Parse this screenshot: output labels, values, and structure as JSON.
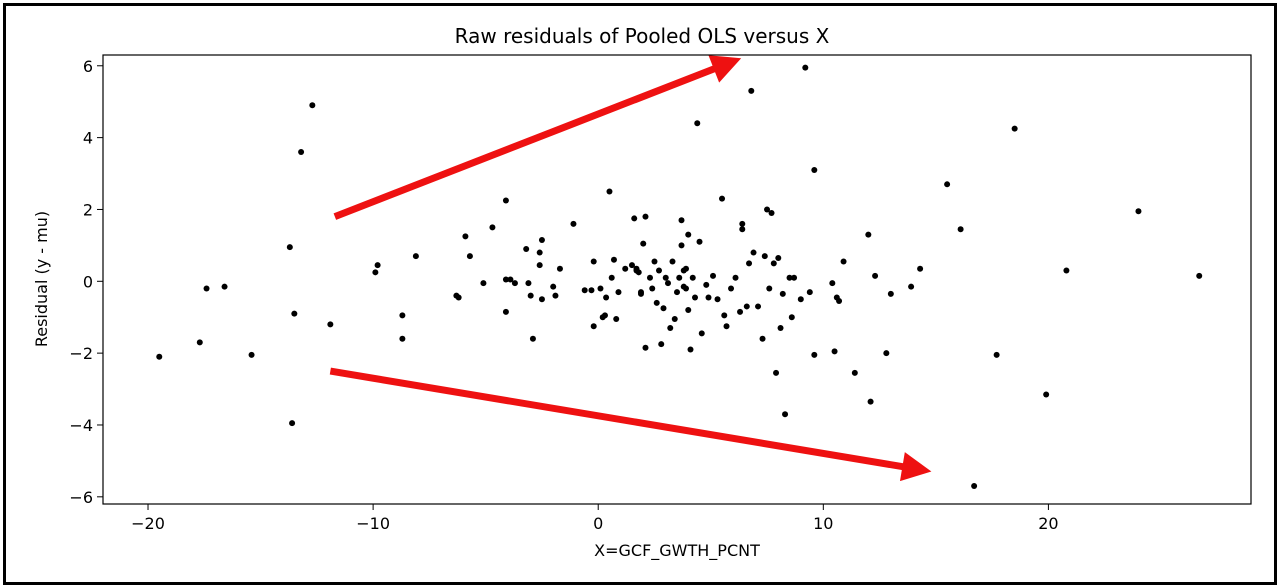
{
  "chart_data": {
    "type": "scatter",
    "title": "Raw residuals of Pooled OLS versus X",
    "xlabel": "X=GCF_GWTH_PCNT",
    "ylabel": "Residual (y - mu)",
    "xlim": [
      -22,
      29
    ],
    "ylim": [
      -6.2,
      6.3
    ],
    "xticks": [
      -20,
      -10,
      0,
      10,
      20
    ],
    "xtick_labels": [
      "−20",
      "−10",
      "0",
      "10",
      "20"
    ],
    "yticks": [
      -6,
      -4,
      -2,
      0,
      2,
      4,
      6
    ],
    "ytick_labels": [
      "−6",
      "−4",
      "−2",
      "0",
      "2",
      "4",
      "6"
    ],
    "point_color": "#000000",
    "arrow_color": "#ee1111",
    "annotations": [
      {
        "type": "arrow",
        "from": [
          -11.7,
          1.8
        ],
        "to": [
          5.5,
          6.0
        ]
      },
      {
        "type": "arrow",
        "from": [
          -11.9,
          -2.5
        ],
        "to": [
          13.9,
          -5.2
        ]
      }
    ],
    "points": [
      [
        -19.5,
        -2.1
      ],
      [
        -17.7,
        -1.7
      ],
      [
        -17.4,
        -0.2
      ],
      [
        -16.6,
        -0.15
      ],
      [
        -15.4,
        -2.05
      ],
      [
        -13.7,
        0.95
      ],
      [
        -13.6,
        -3.95
      ],
      [
        -13.5,
        -0.9
      ],
      [
        -13.2,
        3.6
      ],
      [
        -12.7,
        4.9
      ],
      [
        -11.9,
        -1.2
      ],
      [
        -9.9,
        0.25
      ],
      [
        -9.8,
        0.45
      ],
      [
        -8.7,
        -0.95
      ],
      [
        -8.7,
        -1.6
      ],
      [
        -8.1,
        0.7
      ],
      [
        -6.3,
        -0.4
      ],
      [
        -6.2,
        -0.45
      ],
      [
        -5.9,
        1.25
      ],
      [
        -5.7,
        0.7
      ],
      [
        -5.1,
        -0.05
      ],
      [
        -4.7,
        1.5
      ],
      [
        -4.1,
        2.25
      ],
      [
        -4.1,
        0.05
      ],
      [
        -4.1,
        -0.85
      ],
      [
        -3.9,
        0.05
      ],
      [
        -3.7,
        -0.05
      ],
      [
        -3.2,
        0.9
      ],
      [
        -3.1,
        -0.05
      ],
      [
        -3.0,
        -0.4
      ],
      [
        -2.9,
        -1.6
      ],
      [
        -2.6,
        0.8
      ],
      [
        -2.6,
        0.45
      ],
      [
        -2.5,
        1.15
      ],
      [
        -2.5,
        -0.5
      ],
      [
        -2.0,
        -0.15
      ],
      [
        -1.9,
        -0.4
      ],
      [
        -1.7,
        0.35
      ],
      [
        -1.1,
        1.6
      ],
      [
        -0.6,
        -0.25
      ],
      [
        -0.3,
        -0.25
      ],
      [
        -0.2,
        0.55
      ],
      [
        -0.2,
        -1.25
      ],
      [
        0.1,
        -0.2
      ],
      [
        0.2,
        -1.0
      ],
      [
        0.3,
        -0.95
      ],
      [
        0.35,
        -0.45
      ],
      [
        0.5,
        2.5
      ],
      [
        0.6,
        0.1
      ],
      [
        0.7,
        0.6
      ],
      [
        0.8,
        -1.05
      ],
      [
        0.9,
        -0.3
      ],
      [
        1.2,
        0.35
      ],
      [
        1.5,
        0.45
      ],
      [
        1.6,
        1.75
      ],
      [
        1.7,
        0.35
      ],
      [
        1.7,
        0.3
      ],
      [
        1.8,
        0.25
      ],
      [
        1.9,
        -0.3
      ],
      [
        1.9,
        -0.35
      ],
      [
        2.0,
        1.05
      ],
      [
        2.1,
        1.8
      ],
      [
        2.1,
        -1.85
      ],
      [
        2.3,
        0.1
      ],
      [
        2.4,
        -0.2
      ],
      [
        2.5,
        0.55
      ],
      [
        2.6,
        -0.6
      ],
      [
        2.7,
        0.3
      ],
      [
        2.8,
        -1.75
      ],
      [
        2.9,
        -0.75
      ],
      [
        3.0,
        0.1
      ],
      [
        3.1,
        -0.05
      ],
      [
        3.2,
        -1.3
      ],
      [
        3.3,
        0.55
      ],
      [
        3.4,
        -1.05
      ],
      [
        3.5,
        -0.3
      ],
      [
        3.6,
        0.1
      ],
      [
        3.7,
        1.7
      ],
      [
        3.7,
        1.0
      ],
      [
        3.8,
        0.3
      ],
      [
        3.8,
        -0.15
      ],
      [
        3.9,
        0.35
      ],
      [
        3.9,
        -0.2
      ],
      [
        4.0,
        1.3
      ],
      [
        4.0,
        -0.8
      ],
      [
        4.1,
        -1.9
      ],
      [
        4.2,
        0.1
      ],
      [
        4.3,
        -0.45
      ],
      [
        4.4,
        4.4
      ],
      [
        4.5,
        1.1
      ],
      [
        4.6,
        -1.45
      ],
      [
        4.8,
        -0.1
      ],
      [
        4.9,
        -0.45
      ],
      [
        5.1,
        0.15
      ],
      [
        5.3,
        -0.5
      ],
      [
        5.5,
        2.3
      ],
      [
        5.6,
        -0.95
      ],
      [
        5.7,
        -1.25
      ],
      [
        5.9,
        -0.2
      ],
      [
        6.1,
        0.1
      ],
      [
        6.3,
        -0.85
      ],
      [
        6.4,
        1.6
      ],
      [
        6.4,
        1.45
      ],
      [
        6.6,
        -0.7
      ],
      [
        6.7,
        0.5
      ],
      [
        6.8,
        5.3
      ],
      [
        6.9,
        0.8
      ],
      [
        7.1,
        -0.7
      ],
      [
        7.3,
        -1.6
      ],
      [
        7.4,
        0.7
      ],
      [
        7.5,
        2.0
      ],
      [
        7.6,
        -0.2
      ],
      [
        7.7,
        1.9
      ],
      [
        7.8,
        0.5
      ],
      [
        7.9,
        -2.55
      ],
      [
        8.0,
        0.65
      ],
      [
        8.1,
        -1.3
      ],
      [
        8.2,
        -0.35
      ],
      [
        8.3,
        -3.7
      ],
      [
        8.5,
        0.1
      ],
      [
        8.6,
        -1.0
      ],
      [
        8.7,
        0.1
      ],
      [
        9.0,
        -0.5
      ],
      [
        9.2,
        5.95
      ],
      [
        9.4,
        -0.3
      ],
      [
        9.6,
        3.1
      ],
      [
        9.6,
        -2.05
      ],
      [
        10.4,
        -0.05
      ],
      [
        10.5,
        -1.95
      ],
      [
        10.6,
        -0.45
      ],
      [
        10.7,
        -0.55
      ],
      [
        10.9,
        0.55
      ],
      [
        11.4,
        -2.55
      ],
      [
        12.0,
        1.3
      ],
      [
        12.1,
        -3.35
      ],
      [
        12.3,
        0.15
      ],
      [
        12.8,
        -2.0
      ],
      [
        13.0,
        -0.35
      ],
      [
        13.9,
        -0.15
      ],
      [
        14.3,
        0.35
      ],
      [
        15.5,
        2.7
      ],
      [
        16.1,
        1.45
      ],
      [
        16.7,
        -5.7
      ],
      [
        17.7,
        -2.05
      ],
      [
        18.5,
        4.25
      ],
      [
        19.9,
        -3.15
      ],
      [
        20.8,
        0.3
      ],
      [
        24.0,
        1.95
      ],
      [
        26.7,
        0.15
      ]
    ]
  }
}
